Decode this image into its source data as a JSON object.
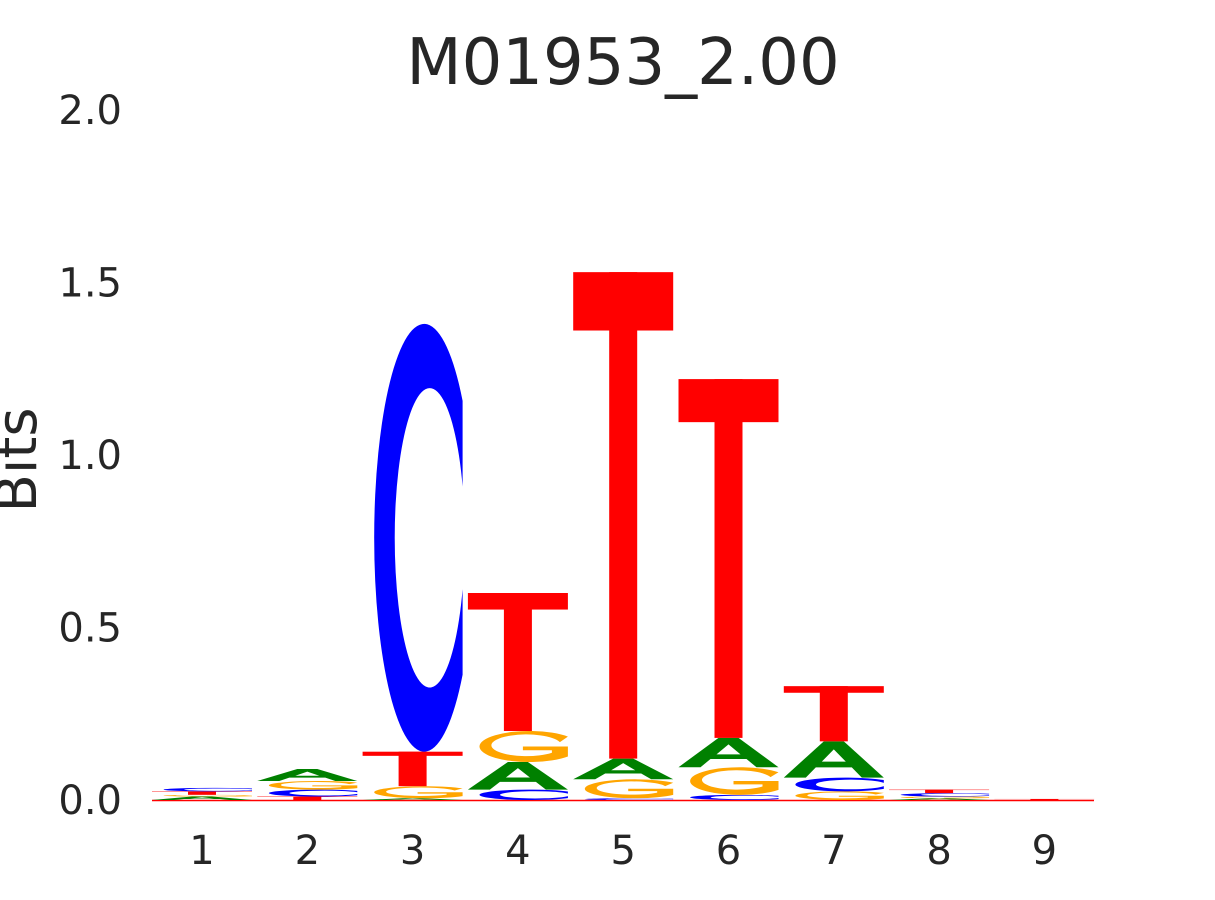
{
  "chart_data": {
    "type": "sequence-logo",
    "title": "M01953_2.00",
    "xlabel": "",
    "ylabel": "Bits",
    "ylim": [
      0,
      2.0
    ],
    "yticks": [
      "0.0",
      "0.5",
      "1.0",
      "1.5",
      "2.0"
    ],
    "grid": false,
    "legend": "none",
    "colors": {
      "A": "#008000",
      "C": "#0000ff",
      "G": "#ffa500",
      "T": "#ff0000"
    },
    "positions": [
      {
        "label": "1",
        "letters": [
          [
            "A",
            0.01
          ],
          [
            "G",
            0.005
          ],
          [
            "T",
            0.01
          ],
          [
            "C",
            0.01
          ]
        ]
      },
      {
        "label": "2",
        "letters": [
          [
            "T",
            0.01
          ],
          [
            "C",
            0.02
          ],
          [
            "G",
            0.025
          ],
          [
            "A",
            0.035
          ]
        ]
      },
      {
        "label": "3",
        "letters": [
          [
            "A",
            0.005
          ],
          [
            "G",
            0.035
          ],
          [
            "T",
            0.1
          ],
          [
            "C",
            1.24
          ]
        ]
      },
      {
        "label": "4",
        "letters": [
          [
            "C",
            0.03
          ],
          [
            "A",
            0.08
          ],
          [
            "G",
            0.09
          ],
          [
            "T",
            0.4
          ]
        ]
      },
      {
        "label": "5",
        "letters": [
          [
            "C",
            0.005
          ],
          [
            "G",
            0.055
          ],
          [
            "A",
            0.06
          ],
          [
            "T",
            1.41
          ]
        ]
      },
      {
        "label": "6",
        "letters": [
          [
            "C",
            0.015
          ],
          [
            "G",
            0.08
          ],
          [
            "A",
            0.085
          ],
          [
            "T",
            1.04
          ]
        ]
      },
      {
        "label": "7",
        "letters": [
          [
            "G",
            0.025
          ],
          [
            "C",
            0.04
          ],
          [
            "A",
            0.105
          ],
          [
            "T",
            0.16
          ]
        ]
      },
      {
        "label": "8",
        "letters": [
          [
            "A",
            0.005
          ],
          [
            "G",
            0.005
          ],
          [
            "C",
            0.01
          ],
          [
            "T",
            0.01
          ]
        ]
      },
      {
        "label": "9",
        "letters": [
          [
            "T",
            0.003
          ]
        ]
      }
    ]
  }
}
